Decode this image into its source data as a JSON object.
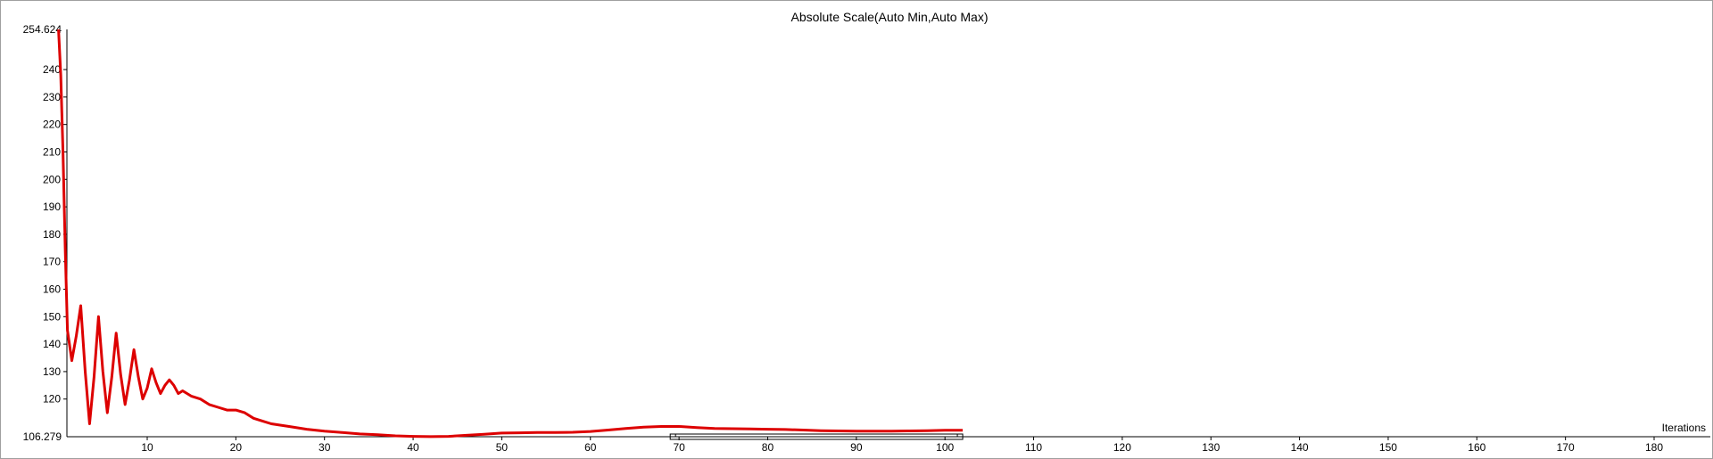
{
  "chart_data": {
    "type": "line",
    "title": "Absolute Scale(Auto Min,Auto Max)",
    "xlabel": "Iterations",
    "ylabel": "",
    "xlim": [
      0,
      184
    ],
    "ylim": [
      106.279,
      254.624
    ],
    "x_ticks": [
      10,
      20,
      30,
      40,
      50,
      60,
      70,
      80,
      90,
      100,
      110,
      120,
      130,
      140,
      150,
      160,
      170,
      180
    ],
    "y_ticks": [
      120,
      130,
      140,
      150,
      160,
      170,
      180,
      190,
      200,
      210,
      220,
      230,
      240
    ],
    "y_min_label": "106.279",
    "y_max_label": "254.624",
    "grid": false,
    "colors": {
      "line": "#dd0000",
      "axis": "#000000"
    },
    "series": [
      {
        "x": [
          0,
          0.25,
          0.5,
          0.75,
          1,
          1.5,
          2,
          2.5,
          3,
          3.5,
          4,
          4.5,
          5,
          5.5,
          6,
          6.5,
          7,
          7.5,
          8,
          8.5,
          9,
          9.5,
          10,
          10.5,
          11,
          11.5,
          12,
          12.5,
          13,
          13.5,
          14,
          15,
          16,
          17,
          18,
          19,
          20,
          21,
          22,
          23,
          24,
          25,
          26,
          28,
          30,
          32,
          34,
          36,
          38,
          40,
          42,
          44,
          46,
          48,
          50,
          52,
          54,
          56,
          58,
          60,
          62,
          64,
          66,
          68,
          70,
          72,
          74,
          76,
          78,
          80,
          82,
          84,
          86,
          88,
          90,
          92,
          94,
          96,
          98,
          100,
          102
        ],
        "y": [
          254.6,
          238,
          210,
          175,
          145,
          134,
          143,
          154,
          130,
          111,
          128,
          150,
          130,
          115,
          128,
          144,
          129,
          118,
          127,
          138,
          128,
          120,
          124,
          131,
          126,
          122,
          125,
          127,
          125,
          122,
          123,
          121,
          120,
          118,
          117,
          116,
          116,
          115,
          113,
          112,
          111,
          110.5,
          110,
          109,
          108.3,
          107.8,
          107.3,
          107,
          106.6,
          106.4,
          106.3,
          106.4,
          106.8,
          107.2,
          107.6,
          107.7,
          107.8,
          107.8,
          107.9,
          108.2,
          108.7,
          109.3,
          109.8,
          110,
          110,
          109.6,
          109.3,
          109.2,
          109.1,
          109,
          108.9,
          108.7,
          108.5,
          108.4,
          108.3,
          108.3,
          108.3,
          108.4,
          108.5,
          108.6,
          108.6
        ]
      }
    ],
    "scroll_range": [
      69,
      102
    ]
  }
}
